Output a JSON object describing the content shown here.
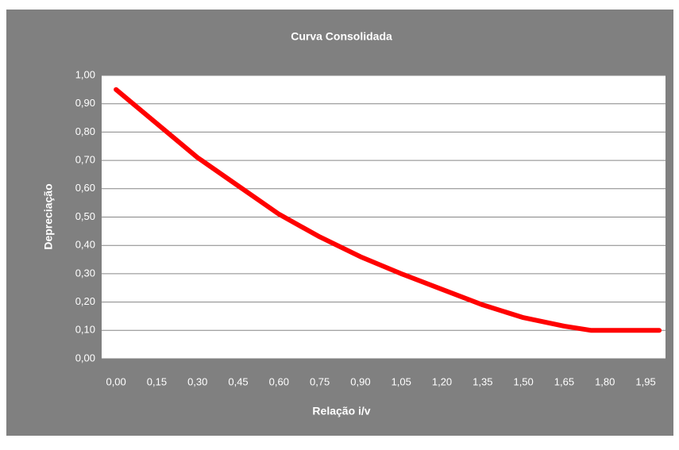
{
  "chart_data": {
    "type": "line",
    "title": "Curva Consolidada",
    "x_label": "Relação i/v",
    "y_label": "Depreciação",
    "x": [
      0,
      0.15,
      0.3,
      0.45,
      0.6,
      0.75,
      0.9,
      1.05,
      1.2,
      1.35,
      1.5,
      1.65,
      1.75,
      1.8,
      1.95,
      2.0
    ],
    "series": [
      {
        "name": "Depreciação",
        "color": "#ff0000",
        "values": [
          0.95,
          0.83,
          0.71,
          0.61,
          0.51,
          0.43,
          0.36,
          0.3,
          0.245,
          0.19,
          0.145,
          0.115,
          0.1,
          0.1,
          0.1,
          0.1
        ]
      }
    ],
    "xlim": [
      -0.053,
      2.023
    ],
    "xticks": [
      {
        "value": 0,
        "label": "0,00"
      },
      {
        "value": 0.15,
        "label": "0,15"
      },
      {
        "value": 0.3,
        "label": "0,30"
      },
      {
        "value": 0.45,
        "label": "0,45"
      },
      {
        "value": 0.6,
        "label": "0,60"
      },
      {
        "value": 0.75,
        "label": "0,75"
      },
      {
        "value": 0.9,
        "label": "0,90"
      },
      {
        "value": 1.05,
        "label": "1,05"
      },
      {
        "value": 1.2,
        "label": "1,20"
      },
      {
        "value": 1.35,
        "label": "1,35"
      },
      {
        "value": 1.5,
        "label": "1,50"
      },
      {
        "value": 1.65,
        "label": "1,65"
      },
      {
        "value": 1.8,
        "label": "1,80"
      },
      {
        "value": 1.95,
        "label": "1,95"
      }
    ],
    "ylim": [
      0,
      1
    ],
    "yticks": [
      {
        "value": 0,
        "label": "0,00"
      },
      {
        "value": 0.1,
        "label": "0,10"
      },
      {
        "value": 0.2,
        "label": "0,20"
      },
      {
        "value": 0.3,
        "label": "0,30"
      },
      {
        "value": 0.4,
        "label": "0,40"
      },
      {
        "value": 0.5,
        "label": "0,50"
      },
      {
        "value": 0.6,
        "label": "0,60"
      },
      {
        "value": 0.7,
        "label": "0,70"
      },
      {
        "value": 0.8,
        "label": "0,80"
      },
      {
        "value": 0.9,
        "label": "0,90"
      },
      {
        "value": 1,
        "label": "1,00"
      }
    ],
    "grid": true
  }
}
